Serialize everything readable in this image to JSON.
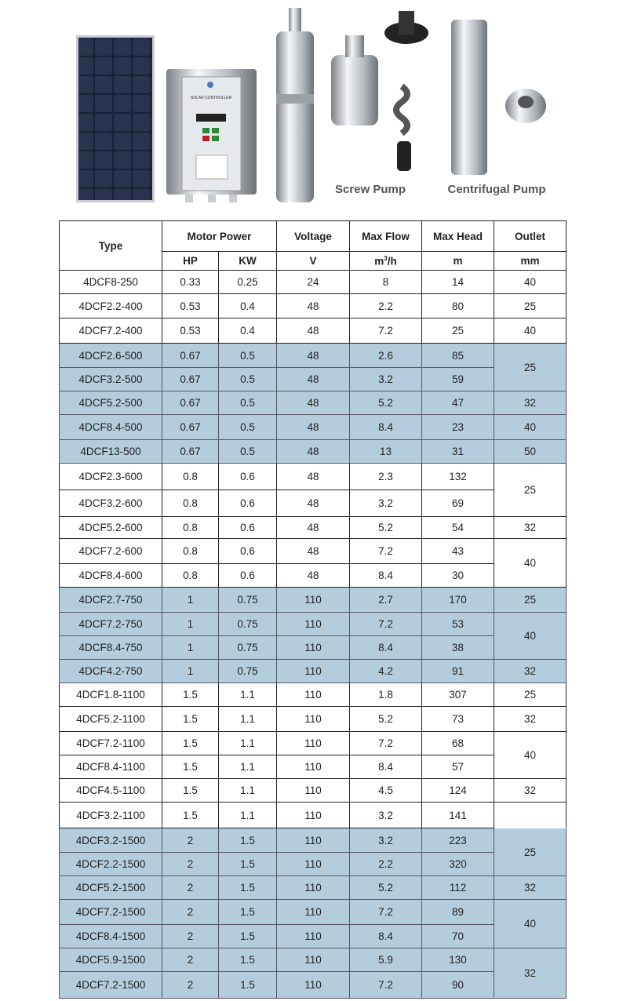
{
  "products": {
    "screw_pump_caption": "Screw Pump",
    "centrifugal_pump_caption": "Centrifugal Pump",
    "controller_label": "SOLAR CONTROLLER"
  },
  "table": {
    "headers": {
      "type": "Type",
      "motor_power": "Motor Power",
      "voltage": "Voltage",
      "max_flow": "Max Flow",
      "max_head": "Max Head",
      "outlet": "Outlet",
      "hp": "HP",
      "kw": "KW",
      "v": "V",
      "flow_unit": "m",
      "flow_unit_sup": "3",
      "flow_unit_tail": "/h",
      "head_unit": "m",
      "outlet_unit": "mm"
    },
    "shaded_color": "#b4cddc",
    "rows": [
      {
        "type": "4DCF8-250",
        "hp": "0.33",
        "kw": "0.25",
        "v": "24",
        "flow": "8",
        "head": "14",
        "outlet": "40",
        "span": 1,
        "shaded": false,
        "h": 30
      },
      {
        "type": "4DCF2.2-400",
        "hp": "0.53",
        "kw": "0.4",
        "v": "48",
        "flow": "2.2",
        "head": "80",
        "outlet": "25",
        "span": 1,
        "shaded": false,
        "h": 31
      },
      {
        "type": "4DCF7.2-400",
        "hp": "0.53",
        "kw": "0.4",
        "v": "48",
        "flow": "7.2",
        "head": "25",
        "outlet": "40",
        "span": 1,
        "shaded": false,
        "h": 32
      },
      {
        "type": "4DCF2.6-500",
        "hp": "0.67",
        "kw": "0.5",
        "v": "48",
        "flow": "2.6",
        "head": "85",
        "outlet": "25",
        "span": 2,
        "shaded": true,
        "h": 31
      },
      {
        "type": "4DCF3.2-500",
        "hp": "0.67",
        "kw": "0.5",
        "v": "48",
        "flow": "3.2",
        "head": "59",
        "outlet": null,
        "span": 0,
        "shaded": true,
        "h": 30
      },
      {
        "type": "4DCF5.2-500",
        "hp": "0.67",
        "kw": "0.5",
        "v": "48",
        "flow": "5.2",
        "head": "47",
        "outlet": "32",
        "span": 1,
        "shaded": true,
        "h": 30
      },
      {
        "type": "4DCF8.4-500",
        "hp": "0.67",
        "kw": "0.5",
        "v": "48",
        "flow": "8.4",
        "head": "23",
        "outlet": "40",
        "span": 1,
        "shaded": true,
        "h": 32
      },
      {
        "type": "4DCF13-500",
        "hp": "0.67",
        "kw": "0.5",
        "v": "48",
        "flow": "13",
        "head": "31",
        "outlet": "50",
        "span": 1,
        "shaded": true,
        "h": 30
      },
      {
        "type": "4DCF2.3-600",
        "hp": "0.8",
        "kw": "0.6",
        "v": "48",
        "flow": "2.3",
        "head": "132",
        "outlet": "25",
        "span": 2,
        "shaded": false,
        "h": 34
      },
      {
        "type": "4DCF3.2-600",
        "hp": "0.8",
        "kw": "0.6",
        "v": "48",
        "flow": "3.2",
        "head": "69",
        "outlet": null,
        "span": 0,
        "shaded": false,
        "h": 34
      },
      {
        "type": "4DCF5.2-600",
        "hp": "0.8",
        "kw": "0.6",
        "v": "48",
        "flow": "5.2",
        "head": "54",
        "outlet": "32",
        "span": 1,
        "shaded": false,
        "h": 28
      },
      {
        "type": "4DCF7.2-600",
        "hp": "0.8",
        "kw": "0.6",
        "v": "48",
        "flow": "7.2",
        "head": "43",
        "outlet": "40",
        "span": 2,
        "shaded": false,
        "h": 32
      },
      {
        "type": "4DCF8.4-600",
        "hp": "0.8",
        "kw": "0.6",
        "v": "48",
        "flow": "8.4",
        "head": "30",
        "outlet": null,
        "span": 0,
        "shaded": false,
        "h": 30
      },
      {
        "type": "4DCF2.7-750",
        "hp": "1",
        "kw": "0.75",
        "v": "110",
        "flow": "2.7",
        "head": "170",
        "outlet": "25",
        "span": 1,
        "shaded": true,
        "h": 32
      },
      {
        "type": "4DCF7.2-750",
        "hp": "1",
        "kw": "0.75",
        "v": "110",
        "flow": "7.2",
        "head": "53",
        "outlet": "40",
        "span": 2,
        "shaded": true,
        "h": 30
      },
      {
        "type": "4DCF8.4-750",
        "hp": "1",
        "kw": "0.75",
        "v": "110",
        "flow": "8.4",
        "head": "38",
        "outlet": null,
        "span": 0,
        "shaded": true,
        "h": 30
      },
      {
        "type": "4DCF4.2-750",
        "hp": "1",
        "kw": "0.75",
        "v": "110",
        "flow": "4.2",
        "head": "91",
        "outlet": "32",
        "span": 1,
        "shaded": true,
        "h": 30
      },
      {
        "type": "4DCF1.8-1100",
        "hp": "1.5",
        "kw": "1.1",
        "v": "110",
        "flow": "1.8",
        "head": "307",
        "outlet": "25",
        "span": 1,
        "shaded": false,
        "h": 30
      },
      {
        "type": "4DCF5.2-1100",
        "hp": "1.5",
        "kw": "1.1",
        "v": "110",
        "flow": "5.2",
        "head": "73",
        "outlet": "32",
        "span": 1,
        "shaded": false,
        "h": 32
      },
      {
        "type": "4DCF7.2-1100",
        "hp": "1.5",
        "kw": "1.1",
        "v": "110",
        "flow": "7.2",
        "head": "68",
        "outlet": "40",
        "span": 2,
        "shaded": false,
        "h": 30
      },
      {
        "type": "4DCF8.4-1100",
        "hp": "1.5",
        "kw": "1.1",
        "v": "110",
        "flow": "8.4",
        "head": "57",
        "outlet": null,
        "span": 0,
        "shaded": false,
        "h": 30
      },
      {
        "type": "4DCF4.5-1100",
        "hp": "1.5",
        "kw": "1.1",
        "v": "110",
        "flow": "4.5",
        "head": "124",
        "outlet": "32",
        "span": 1,
        "shaded": false,
        "h": 30
      },
      {
        "type": "4DCF3.2-1100",
        "hp": "1.5",
        "kw": "1.1",
        "v": "110",
        "flow": "3.2",
        "head": "141",
        "outlet": "",
        "span": 1,
        "shaded": false,
        "h": 33
      },
      {
        "type": "4DCF3.2-1500",
        "hp": "2",
        "kw": "1.5",
        "v": "110",
        "flow": "3.2",
        "head": "223",
        "outlet": "25",
        "span": 2,
        "shaded": true,
        "h": 31
      },
      {
        "type": "4DCF2.2-1500",
        "hp": "2",
        "kw": "1.5",
        "v": "110",
        "flow": "2.2",
        "head": "320",
        "outlet": null,
        "span": 0,
        "shaded": true,
        "h": 30
      },
      {
        "type": "4DCF5.2-1500",
        "hp": "2",
        "kw": "1.5",
        "v": "110",
        "flow": "5.2",
        "head": "112",
        "outlet": "32",
        "span": 1,
        "shaded": true,
        "h": 30
      },
      {
        "type": "4DCF7.2-1500",
        "hp": "2",
        "kw": "1.5",
        "v": "110",
        "flow": "7.2",
        "head": "89",
        "outlet": "40",
        "span": 2,
        "shaded": true,
        "h": 32
      },
      {
        "type": "4DCF8.4-1500",
        "hp": "2",
        "kw": "1.5",
        "v": "110",
        "flow": "8.4",
        "head": "70",
        "outlet": null,
        "span": 0,
        "shaded": true,
        "h": 30
      },
      {
        "type": "4DCF5.9-1500",
        "hp": "2",
        "kw": "1.5",
        "v": "110",
        "flow": "5.9",
        "head": "130",
        "outlet": "32",
        "span": 2,
        "shaded": true,
        "h": 30
      },
      {
        "type": "4DCF7.2-1500",
        "hp": "2",
        "kw": "1.5",
        "v": "110",
        "flow": "7.2",
        "head": "90",
        "outlet": null,
        "span": 0,
        "shaded": true,
        "h": 34
      }
    ]
  }
}
